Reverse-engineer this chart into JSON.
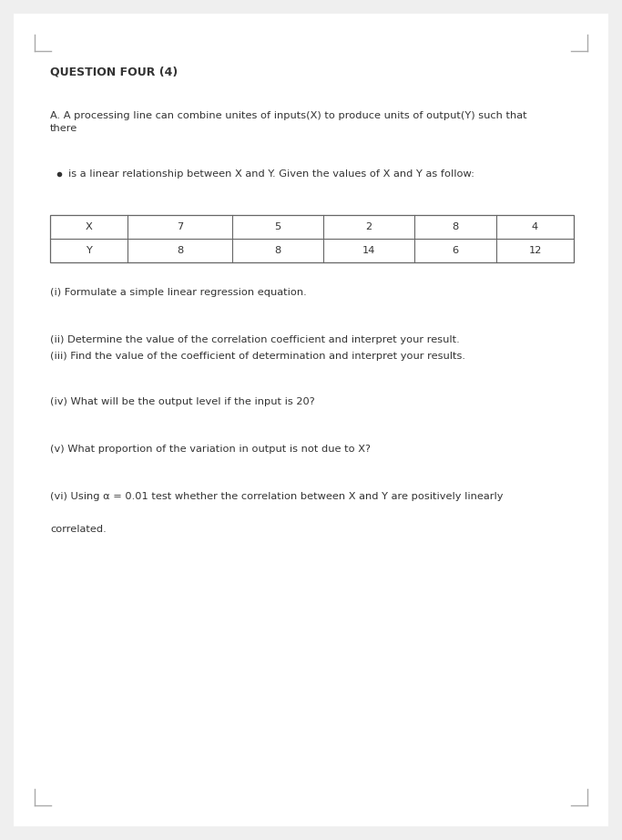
{
  "background_color": "#efefef",
  "page_bg": "#ffffff",
  "title": "QUESTION FOUR (4)",
  "title_fontsize": 9.0,
  "para_A": "A. A processing line can combine unites of inputs(X) to produce units of output(Y) such that\nthere",
  "bullet_text": "is a linear relationship between X and Y. Given the values of X and Y as follow:",
  "table_headers": [
    "X",
    "7",
    "5",
    "2",
    "8",
    "4"
  ],
  "table_row2": [
    "Y",
    "8",
    "8",
    "14",
    "6",
    "12"
  ],
  "questions": [
    "(i) Formulate a simple linear regression equation.",
    "",
    "(ii) Determine the value of the correlation coefficient and interpret your result.",
    "(iii) Find the value of the coefficient of determination and interpret your results.",
    "",
    "(iv) What will be the output level if the input is 20?",
    "",
    "(v) What proportion of the variation in output is not due to X?",
    "",
    "(vi) Using α = 0.01 test whether the correlation between X and Y are positively linearly",
    "",
    "correlated."
  ],
  "text_color": "#333333",
  "table_border_color": "#666666",
  "body_fontsize": 8.2,
  "corner_mark_color": "#aaaaaa"
}
